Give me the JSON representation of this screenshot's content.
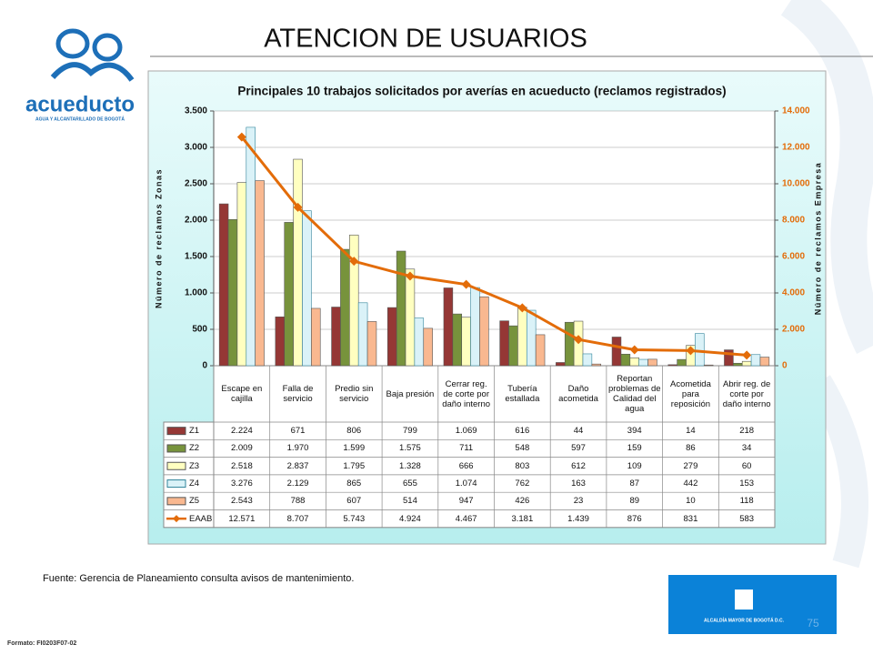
{
  "header": {
    "title": "ATENCION DE USUARIOS"
  },
  "logo": {
    "name": "acueducto",
    "tagline": "AGUA Y ALCANTARILLADO DE BOGOTÁ"
  },
  "chart_data": {
    "type": "bar",
    "title": "Principales 10 trabajos solicitados por averías en acueducto (reclamos registrados)",
    "y_label": "Número de reclamos Zonas",
    "y2_label": "Número de reclamos Empresa",
    "categories": [
      "Escape en cajilla",
      "Falla de servicio",
      "Predio sin servicio",
      "Baja presión",
      "Cerrar reg. de corte por daño interno",
      "Tubería estallada",
      "Daño acometida",
      "Reportan problemas de Calidad del agua",
      "Acometida para reposición",
      "Abrir reg. de corte por daño interno"
    ],
    "series": [
      {
        "name": "Z1",
        "color": "#953735",
        "values": [
          2224,
          671,
          806,
          799,
          1069,
          616,
          44,
          394,
          14,
          218
        ],
        "value_labels": [
          "2.224",
          "671",
          "806",
          "799",
          "1.069",
          "616",
          "44",
          "394",
          "14",
          "218"
        ]
      },
      {
        "name": "Z2",
        "color": "#77933c",
        "values": [
          2009,
          1970,
          1599,
          1575,
          711,
          548,
          597,
          159,
          86,
          34
        ],
        "value_labels": [
          "2.009",
          "1.970",
          "1.599",
          "1.575",
          "711",
          "548",
          "597",
          "159",
          "86",
          "34"
        ]
      },
      {
        "name": "Z3",
        "color": "#ffffc0",
        "values": [
          2518,
          2837,
          1795,
          1328,
          666,
          803,
          612,
          109,
          279,
          60
        ],
        "value_labels": [
          "2.518",
          "2.837",
          "1.795",
          "1.328",
          "666",
          "803",
          "612",
          "109",
          "279",
          "60"
        ]
      },
      {
        "name": "Z4",
        "color": "#daf2f8",
        "values": [
          3276,
          2129,
          865,
          655,
          1074,
          762,
          163,
          87,
          442,
          153
        ],
        "value_labels": [
          "3.276",
          "2.129",
          "865",
          "655",
          "1.074",
          "762",
          "163",
          "87",
          "442",
          "153"
        ]
      },
      {
        "name": "Z5",
        "color": "#f9b890",
        "values": [
          2543,
          788,
          607,
          514,
          947,
          426,
          23,
          89,
          10,
          118
        ],
        "value_labels": [
          "2.543",
          "788",
          "607",
          "514",
          "947",
          "426",
          "23",
          "89",
          "10",
          "118"
        ]
      },
      {
        "name": "EAAB",
        "type": "line",
        "axis": "y2",
        "color": "#e36c09",
        "values": [
          12571,
          8707,
          5743,
          4924,
          4467,
          3181,
          1439,
          876,
          831,
          583
        ],
        "value_labels": [
          "12.571",
          "8.707",
          "5.743",
          "4.924",
          "4.467",
          "3.181",
          "1.439",
          "876",
          "831",
          "583"
        ]
      }
    ],
    "ylim": [
      0,
      3500
    ],
    "yticks": [
      0,
      500,
      {
        "value": 1000,
        "label": "1.000"
      },
      {
        "value": 1500,
        "label": "1.500"
      },
      {
        "value": 2000,
        "label": "2.000"
      },
      {
        "value": 2500,
        "label": "2.500"
      },
      {
        "value": 3000,
        "label": "3.000"
      },
      {
        "value": 3500,
        "label": "3.500"
      }
    ],
    "y2lim": [
      0,
      14000
    ],
    "y2ticks": [
      0,
      {
        "value": 2000,
        "label": "2.000"
      },
      {
        "value": 4000,
        "label": "4.000"
      },
      {
        "value": 6000,
        "label": "6.000"
      },
      {
        "value": 8000,
        "label": "8.000"
      },
      {
        "value": 10000,
        "label": "10.000"
      },
      {
        "value": 12000,
        "label": "12.000"
      },
      {
        "value": 14000,
        "label": "14.000"
      }
    ]
  },
  "footer": {
    "source": "Fuente: Gerencia de Planeamiento consulta avisos de mantenimiento.",
    "format": "Formato: FI0203F07-02",
    "page": "75",
    "city": "ALCALDÍA MAYOR DE BOGOTÁ D.C."
  }
}
